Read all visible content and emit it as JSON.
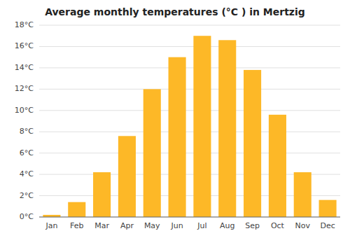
{
  "chart_data": {
    "type": "bar",
    "title": "Average monthly temperatures (°C ) in Mertzig",
    "categories": [
      "Jan",
      "Feb",
      "Mar",
      "Apr",
      "May",
      "Jun",
      "Jul",
      "Aug",
      "Sep",
      "Oct",
      "Nov",
      "Dec"
    ],
    "values": [
      0.2,
      1.4,
      4.2,
      7.6,
      12.0,
      15.0,
      17.0,
      16.6,
      13.8,
      9.6,
      4.2,
      1.6
    ],
    "color": "#FDB827",
    "ylim": [
      0,
      18
    ],
    "yticks": [
      {
        "value": 0,
        "label": "0°C"
      },
      {
        "value": 2,
        "label": "2°C"
      },
      {
        "value": 4,
        "label": "4°C"
      },
      {
        "value": 6,
        "label": "6°C"
      },
      {
        "value": 8,
        "label": "8°C"
      },
      {
        "value": 10,
        "label": "10°C"
      },
      {
        "value": 12,
        "label": "12°C"
      },
      {
        "value": 14,
        "label": "14°C"
      },
      {
        "value": 16,
        "label": "16°C"
      },
      {
        "value": 18,
        "label": "18°C"
      }
    ],
    "grid": true
  }
}
